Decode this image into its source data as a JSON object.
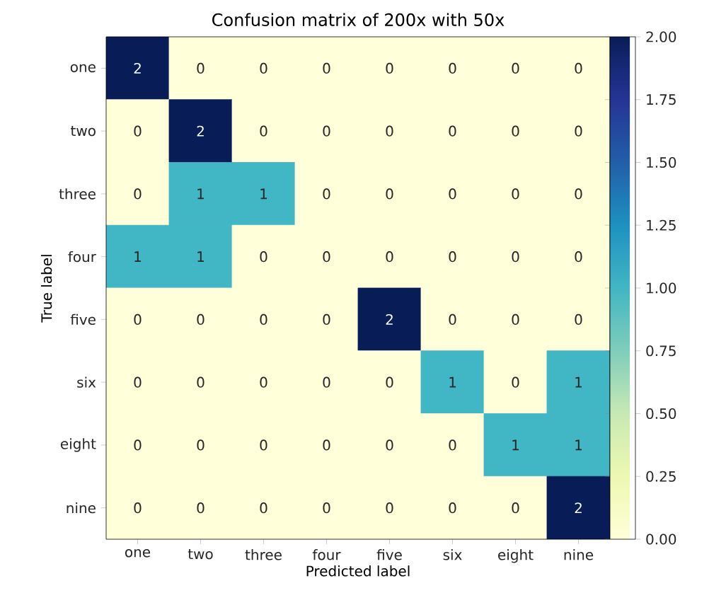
{
  "chart_data": {
    "type": "heatmap",
    "title": "Confusion matrix of 200x with 50x",
    "xlabel": "Predicted label",
    "ylabel": "True label",
    "categories": [
      "one",
      "two",
      "three",
      "four",
      "five",
      "six",
      "eight",
      "nine"
    ],
    "y_categories": [
      "one",
      "two",
      "three",
      "four",
      "five",
      "six",
      "eight",
      "nine"
    ],
    "cells": [
      [
        2,
        0,
        0,
        0,
        0,
        0,
        0,
        0
      ],
      [
        0,
        2,
        0,
        0,
        0,
        0,
        0,
        0
      ],
      [
        0,
        1,
        1,
        0,
        0,
        0,
        0,
        0
      ],
      [
        1,
        1,
        0,
        0,
        0,
        0,
        0,
        0
      ],
      [
        0,
        0,
        0,
        0,
        2,
        0,
        0,
        0
      ],
      [
        0,
        0,
        0,
        0,
        0,
        1,
        0,
        1
      ],
      [
        0,
        0,
        0,
        0,
        0,
        0,
        1,
        1
      ],
      [
        0,
        0,
        0,
        0,
        0,
        0,
        0,
        2
      ]
    ],
    "clim": [
      0,
      2
    ],
    "cticks": [
      {
        "value": 0,
        "label": "0.00"
      },
      {
        "value": 0.25,
        "label": "0.25"
      },
      {
        "value": 0.5,
        "label": "0.50"
      },
      {
        "value": 0.75,
        "label": "0.75"
      },
      {
        "value": 1,
        "label": "1.00"
      },
      {
        "value": 1.25,
        "label": "1.25"
      },
      {
        "value": 1.5,
        "label": "1.50"
      },
      {
        "value": 1.75,
        "label": "1.75"
      },
      {
        "value": 2,
        "label": "2.00"
      }
    ],
    "data_labels": true
  }
}
